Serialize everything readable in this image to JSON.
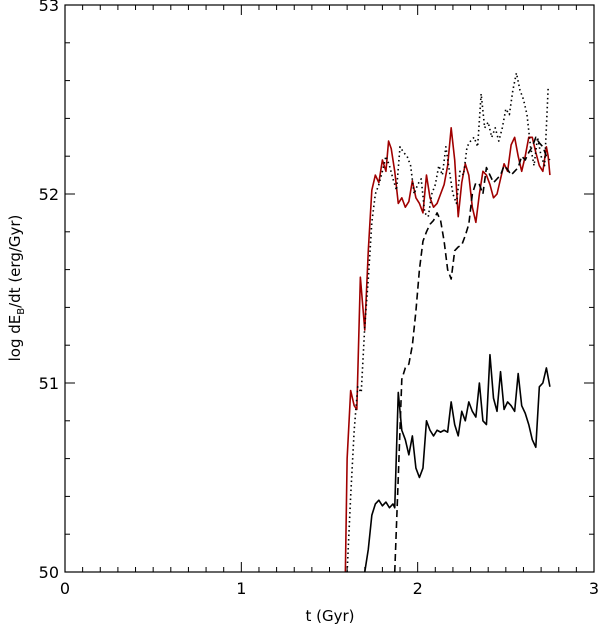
{
  "chart_data": {
    "type": "line",
    "title": "",
    "xlabel": "t (Gyr)",
    "ylabel_parts": {
      "before": "log dE",
      "sub": "B",
      "after": "/dt (erg/Gyr)"
    },
    "xlim": [
      0,
      3
    ],
    "ylim": [
      50,
      53
    ],
    "xticks": [
      0,
      1,
      2,
      3
    ],
    "yticks": [
      50,
      51,
      52,
      53
    ],
    "x_minor_step": 0.1,
    "y_minor_step": 0.2,
    "grid": false,
    "legend": "none",
    "series": [
      {
        "color": "#a00000",
        "dash": "solid",
        "points": [
          [
            1.59,
            50.0
          ],
          [
            1.6,
            50.6
          ],
          [
            1.62,
            50.96
          ],
          [
            1.64,
            50.88
          ],
          [
            1.655,
            50.86
          ],
          [
            1.675,
            51.56
          ],
          [
            1.7,
            51.28
          ],
          [
            1.72,
            51.7
          ],
          [
            1.74,
            52.02
          ],
          [
            1.76,
            52.1
          ],
          [
            1.78,
            52.06
          ],
          [
            1.8,
            52.18
          ],
          [
            1.82,
            52.12
          ],
          [
            1.835,
            52.28
          ],
          [
            1.85,
            52.24
          ],
          [
            1.87,
            52.12
          ],
          [
            1.89,
            51.95
          ],
          [
            1.91,
            51.98
          ],
          [
            1.93,
            51.93
          ],
          [
            1.95,
            51.96
          ],
          [
            1.97,
            52.07
          ],
          [
            1.99,
            51.98
          ],
          [
            2.01,
            51.95
          ],
          [
            2.03,
            51.9
          ],
          [
            2.05,
            52.1
          ],
          [
            2.07,
            51.98
          ],
          [
            2.09,
            51.93
          ],
          [
            2.11,
            51.95
          ],
          [
            2.13,
            52.0
          ],
          [
            2.15,
            52.05
          ],
          [
            2.17,
            52.15
          ],
          [
            2.19,
            52.35
          ],
          [
            2.21,
            52.18
          ],
          [
            2.23,
            51.88
          ],
          [
            2.25,
            52.06
          ],
          [
            2.27,
            52.16
          ],
          [
            2.29,
            52.1
          ],
          [
            2.31,
            51.93
          ],
          [
            2.33,
            51.85
          ],
          [
            2.35,
            52.0
          ],
          [
            2.37,
            52.12
          ],
          [
            2.39,
            52.1
          ],
          [
            2.41,
            52.05
          ],
          [
            2.43,
            51.98
          ],
          [
            2.45,
            52.0
          ],
          [
            2.47,
            52.08
          ],
          [
            2.49,
            52.16
          ],
          [
            2.51,
            52.12
          ],
          [
            2.53,
            52.26
          ],
          [
            2.55,
            52.3
          ],
          [
            2.57,
            52.2
          ],
          [
            2.59,
            52.12
          ],
          [
            2.61,
            52.2
          ],
          [
            2.63,
            52.3
          ],
          [
            2.65,
            52.3
          ],
          [
            2.67,
            52.22
          ],
          [
            2.69,
            52.15
          ],
          [
            2.71,
            52.12
          ],
          [
            2.73,
            52.25
          ],
          [
            2.74,
            52.2
          ],
          [
            2.75,
            52.1
          ]
        ]
      },
      {
        "color": "#000000",
        "dash": "solid",
        "points": [
          [
            1.7,
            50.0
          ],
          [
            1.72,
            50.12
          ],
          [
            1.74,
            50.3
          ],
          [
            1.76,
            50.36
          ],
          [
            1.78,
            50.38
          ],
          [
            1.8,
            50.35
          ],
          [
            1.82,
            50.37
          ],
          [
            1.84,
            50.34
          ],
          [
            1.86,
            50.36
          ],
          [
            1.87,
            50.34
          ],
          [
            1.89,
            50.95
          ],
          [
            1.91,
            50.75
          ],
          [
            1.93,
            50.7
          ],
          [
            1.95,
            50.62
          ],
          [
            1.97,
            50.72
          ],
          [
            1.99,
            50.55
          ],
          [
            2.01,
            50.5
          ],
          [
            2.03,
            50.55
          ],
          [
            2.05,
            50.8
          ],
          [
            2.07,
            50.75
          ],
          [
            2.09,
            50.72
          ],
          [
            2.11,
            50.75
          ],
          [
            2.13,
            50.74
          ],
          [
            2.15,
            50.75
          ],
          [
            2.17,
            50.74
          ],
          [
            2.19,
            50.9
          ],
          [
            2.21,
            50.78
          ],
          [
            2.23,
            50.72
          ],
          [
            2.25,
            50.85
          ],
          [
            2.27,
            50.8
          ],
          [
            2.29,
            50.9
          ],
          [
            2.31,
            50.85
          ],
          [
            2.33,
            50.82
          ],
          [
            2.35,
            51.0
          ],
          [
            2.37,
            50.8
          ],
          [
            2.39,
            50.78
          ],
          [
            2.41,
            51.15
          ],
          [
            2.43,
            50.92
          ],
          [
            2.45,
            50.85
          ],
          [
            2.47,
            51.06
          ],
          [
            2.49,
            50.86
          ],
          [
            2.51,
            50.9
          ],
          [
            2.53,
            50.88
          ],
          [
            2.55,
            50.85
          ],
          [
            2.57,
            51.05
          ],
          [
            2.59,
            50.88
          ],
          [
            2.61,
            50.84
          ],
          [
            2.63,
            50.78
          ],
          [
            2.65,
            50.7
          ],
          [
            2.67,
            50.66
          ],
          [
            2.69,
            50.98
          ],
          [
            2.71,
            51.0
          ],
          [
            2.73,
            51.08
          ],
          [
            2.75,
            50.98
          ]
        ]
      },
      {
        "color": "#000000",
        "dash": "dashed",
        "points": [
          [
            1.87,
            50.0
          ],
          [
            1.89,
            50.5
          ],
          [
            1.91,
            51.02
          ],
          [
            1.93,
            51.08
          ],
          [
            1.95,
            51.1
          ],
          [
            1.97,
            51.2
          ],
          [
            1.99,
            51.38
          ],
          [
            2.01,
            51.6
          ],
          [
            2.03,
            51.75
          ],
          [
            2.05,
            51.8
          ],
          [
            2.07,
            51.84
          ],
          [
            2.09,
            51.86
          ],
          [
            2.11,
            51.9
          ],
          [
            2.13,
            51.86
          ],
          [
            2.15,
            51.75
          ],
          [
            2.17,
            51.6
          ],
          [
            2.19,
            51.55
          ],
          [
            2.21,
            51.7
          ],
          [
            2.23,
            51.72
          ],
          [
            2.25,
            51.73
          ],
          [
            2.27,
            51.78
          ],
          [
            2.29,
            51.84
          ],
          [
            2.31,
            52.0
          ],
          [
            2.33,
            52.06
          ],
          [
            2.35,
            52.05
          ],
          [
            2.37,
            52.0
          ],
          [
            2.39,
            52.14
          ],
          [
            2.41,
            52.1
          ],
          [
            2.43,
            52.06
          ],
          [
            2.45,
            52.08
          ],
          [
            2.47,
            52.1
          ],
          [
            2.49,
            52.15
          ],
          [
            2.51,
            52.13
          ],
          [
            2.53,
            52.1
          ],
          [
            2.55,
            52.12
          ],
          [
            2.57,
            52.14
          ],
          [
            2.59,
            52.2
          ],
          [
            2.61,
            52.18
          ],
          [
            2.63,
            52.22
          ],
          [
            2.65,
            52.25
          ],
          [
            2.67,
            52.3
          ],
          [
            2.69,
            52.27
          ],
          [
            2.71,
            52.25
          ],
          [
            2.73,
            52.2
          ],
          [
            2.75,
            52.18
          ]
        ]
      },
      {
        "color": "#000000",
        "dash": "dotted",
        "points": [
          [
            1.6,
            50.0
          ],
          [
            1.62,
            50.4
          ],
          [
            1.64,
            50.75
          ],
          [
            1.66,
            50.98
          ],
          [
            1.68,
            50.95
          ],
          [
            1.7,
            51.3
          ],
          [
            1.72,
            51.55
          ],
          [
            1.74,
            51.85
          ],
          [
            1.76,
            52.0
          ],
          [
            1.78,
            52.05
          ],
          [
            1.8,
            52.12
          ],
          [
            1.82,
            52.2
          ],
          [
            1.84,
            52.15
          ],
          [
            1.86,
            52.08
          ],
          [
            1.88,
            52.02
          ],
          [
            1.9,
            52.25
          ],
          [
            1.92,
            52.22
          ],
          [
            1.94,
            52.2
          ],
          [
            1.96,
            52.15
          ],
          [
            1.98,
            52.0
          ],
          [
            2.0,
            52.05
          ],
          [
            2.02,
            52.08
          ],
          [
            2.04,
            51.9
          ],
          [
            2.06,
            51.88
          ],
          [
            2.08,
            52.0
          ],
          [
            2.1,
            52.05
          ],
          [
            2.12,
            52.15
          ],
          [
            2.14,
            52.1
          ],
          [
            2.16,
            52.25
          ],
          [
            2.18,
            52.12
          ],
          [
            2.2,
            52.0
          ],
          [
            2.22,
            51.95
          ],
          [
            2.24,
            52.12
          ],
          [
            2.26,
            52.1
          ],
          [
            2.28,
            52.25
          ],
          [
            2.3,
            52.28
          ],
          [
            2.32,
            52.3
          ],
          [
            2.34,
            52.25
          ],
          [
            2.36,
            52.53
          ],
          [
            2.38,
            52.35
          ],
          [
            2.4,
            52.38
          ],
          [
            2.42,
            52.3
          ],
          [
            2.44,
            52.35
          ],
          [
            2.46,
            52.28
          ],
          [
            2.48,
            52.35
          ],
          [
            2.5,
            52.45
          ],
          [
            2.52,
            52.42
          ],
          [
            2.54,
            52.55
          ],
          [
            2.56,
            52.64
          ],
          [
            2.58,
            52.55
          ],
          [
            2.6,
            52.5
          ],
          [
            2.62,
            52.42
          ],
          [
            2.64,
            52.25
          ],
          [
            2.66,
            52.15
          ],
          [
            2.68,
            52.3
          ],
          [
            2.7,
            52.2
          ],
          [
            2.72,
            52.15
          ],
          [
            2.74,
            52.56
          ]
        ]
      }
    ]
  }
}
